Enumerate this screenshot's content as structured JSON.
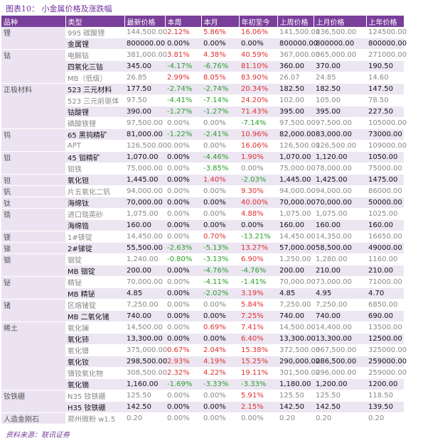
{
  "title": "图表10：  小金属价格及涨跌幅",
  "columns": [
    "品种",
    "类型",
    "最新价格",
    "本周",
    "本月",
    "年初至今",
    "上周价格",
    "上月价格",
    "上年价格"
  ],
  "groups": [
    {
      "name": "锂",
      "rows": [
        [
          "995 碳酸锂",
          "144,500.00",
          "2.12%",
          "5.86%",
          "16.06%",
          "141,500.00",
          "136,500.00",
          "124500.00"
        ],
        [
          "金属锂",
          "800000.00",
          "0.00%",
          "0.00%",
          "0.00%",
          "800000.00",
          "800000.00",
          "800000.00"
        ]
      ]
    },
    {
      "name": "钴",
      "rows": [
        [
          "电解钴",
          "381,000.00",
          "3.81%",
          "4.38%",
          "40.59%",
          "367,000.00",
          "365,000.00",
          "271000.00"
        ],
        [
          "四氧化三钴",
          "345.00",
          "-4.17%",
          "-6.76%",
          "81.10%",
          "360.00",
          "370.00",
          "190.50"
        ],
        [
          "MB（低级）",
          "26.85",
          "2.99%",
          "8.05%",
          "83.90%",
          "26.07",
          "24.85",
          "14.60"
        ]
      ]
    },
    {
      "name": "正极材料",
      "rows": [
        [
          "523 三元材料",
          "177.50",
          "-2.74%",
          "-2.74%",
          "20.34%",
          "182.50",
          "182.50",
          "147.50"
        ],
        [
          "523 三元前驱体",
          "97.50",
          "-4.41%",
          "-7.14%",
          "24.20%",
          "102.00",
          "105.00",
          "78.50"
        ],
        [
          "钴酸锂",
          "390.00",
          "-1.27%",
          "-1.27%",
          "71.43%",
          "395.00",
          "395.00",
          "227.50"
        ],
        [
          "磷酸铁锂",
          "97,500.00",
          "0.00%",
          "0.00%",
          "-7.14%",
          "97,500.00",
          "97,500.00",
          "105000.00"
        ]
      ]
    },
    {
      "name": "钨",
      "rows": [
        [
          "65 黑钨精矿",
          "81,000.00",
          "-1.22%",
          "-2.41%",
          "10.96%",
          "82,000.00",
          "83,000.00",
          "73000.00"
        ],
        [
          "APT",
          "126,500.00",
          "0.00%",
          "0.00%",
          "16.06%",
          "126,500.00",
          "126,500.00",
          "109000.00"
        ]
      ]
    },
    {
      "name": "钼",
      "rows": [
        [
          "45 钼精矿",
          "1,070.00",
          "0.00%",
          "-4.46%",
          "1.90%",
          "1,070.00",
          "1,120.00",
          "1050.00"
        ],
        [
          "钼铁",
          "75,000.00",
          "0.00%",
          "-3.85%",
          "0.00%",
          "75,000.00",
          "78,000.00",
          "75000.00"
        ]
      ]
    },
    {
      "name": "钽",
      "rows": [
        [
          "氧化钽",
          "1,445.00",
          "0.00%",
          "1.40%",
          "-2.03%",
          "1,445.00",
          "1,425.00",
          "1475.00"
        ]
      ]
    },
    {
      "name": "钒",
      "rows": [
        [
          "片五氧化二钒",
          "94,000.00",
          "0.00%",
          "0.00%",
          "9.30%",
          "94,000.00",
          "94,000.00",
          "86000.00"
        ]
      ]
    },
    {
      "name": "钛",
      "rows": [
        [
          "海绵钛",
          "70,000.00",
          "0.00%",
          "0.00%",
          "40.00%",
          "70,000.00",
          "70,000.00",
          "50000.00"
        ]
      ]
    },
    {
      "name": "锆",
      "rows": [
        [
          "进口锆英砂",
          "1,075.00",
          "0.00%",
          "0.00%",
          "4.88%",
          "1,075.00",
          "1,075.00",
          "1025.00"
        ],
        [
          "海绵锆",
          "160.00",
          "0.00%",
          "0.00%",
          "0.00%",
          "160.00",
          "160.00",
          "160.00"
        ]
      ]
    },
    {
      "name": "镁",
      "rows": [
        [
          "1#镁锭",
          "14,450.00",
          "0.00%",
          "0.70%",
          "-13.21%",
          "14,450.00",
          "14,350.00",
          "16650.00"
        ]
      ]
    },
    {
      "name": "锑",
      "rows": [
        [
          "2#锑锭",
          "55,500.00",
          "-2.63%",
          "-5.13%",
          "13.27%",
          "57,000.00",
          "58,500.00",
          "49000.00"
        ]
      ]
    },
    {
      "name": "铟",
      "rows": [
        [
          "铟锭",
          "1,240.00",
          "-0.80%",
          "-3.13%",
          "6.90%",
          "1,250.00",
          "1,280.00",
          "1160.00"
        ],
        [
          "MB 铟锭",
          "200.00",
          "0.00%",
          "-4.76%",
          "-4.76%",
          "200.00",
          "210.00",
          "210.00"
        ]
      ]
    },
    {
      "name": "铋",
      "rows": [
        [
          "精铋",
          "70,000.00",
          "0.00%",
          "-4.11%",
          "-1.41%",
          "70,000.00",
          "73,000.00",
          "71000.00"
        ],
        [
          "MB 精铋",
          "4.85",
          "0.00%",
          "-2.02%",
          "3.19%",
          "4.85",
          "4.95",
          "4.70"
        ]
      ]
    },
    {
      "name": "锗",
      "rows": [
        [
          "区熔锗锭",
          "7,250.00",
          "0.00%",
          "0.00%",
          "5.84%",
          "7,250.00",
          "7,250.00",
          "6850.00"
        ],
        [
          "MB 二氧化锗",
          "740.00",
          "0.00%",
          "0.00%",
          "7.25%",
          "740.00",
          "740.00",
          "690.00"
        ]
      ]
    },
    {
      "name": "稀土",
      "rows": [
        [
          "氧化镧",
          "14,500.00",
          "0.00%",
          "0.69%",
          "7.41%",
          "14,500.00",
          "14,400.00",
          "13500.00"
        ],
        [
          "氧化铈",
          "13,300.00",
          "0.00%",
          "0.00%",
          "6.40%",
          "13,300.00",
          "13,300.00",
          "12500.00"
        ],
        [
          "氧化镨",
          "375,000.00",
          "0.67%",
          "2.04%",
          "15.38%",
          "372,500.00",
          "367,500.00",
          "325000.00"
        ],
        [
          "氧化钕",
          "298,500.00",
          "2.93%",
          "4.19%",
          "15.25%",
          "290,000.00",
          "286,500.00",
          "259000.00"
        ],
        [
          "镨钕氧化物",
          "308,500.00",
          "2.32%",
          "4.22%",
          "19.11%",
          "301,500.00",
          "296,000.00",
          "259000.00"
        ],
        [
          "氧化镝",
          "1,160.00",
          "-1.69%",
          "-3.33%",
          "-3.33%",
          "1,180.00",
          "1,200.00",
          "1200.00"
        ]
      ]
    },
    {
      "name": "钕铁硼",
      "rows": [
        [
          "N35 钕铁硼",
          "125.50",
          "0.00%",
          "0.00%",
          "5.91%",
          "125.50",
          "125.50",
          "118.50"
        ],
        [
          "H35 钕铁硼",
          "142.50",
          "0.00%",
          "0.00%",
          "2.15%",
          "142.50",
          "142.50",
          "139.50"
        ]
      ]
    },
    {
      "name": "人造金刚石",
      "rows": [
        [
          "郑州微粉 w1.5",
          "0.20",
          "0.00%",
          "0.00%",
          "0.00%",
          "0.20",
          "0.20",
          "0.20"
        ]
      ]
    }
  ],
  "source": "资料来源：联讯证券"
}
